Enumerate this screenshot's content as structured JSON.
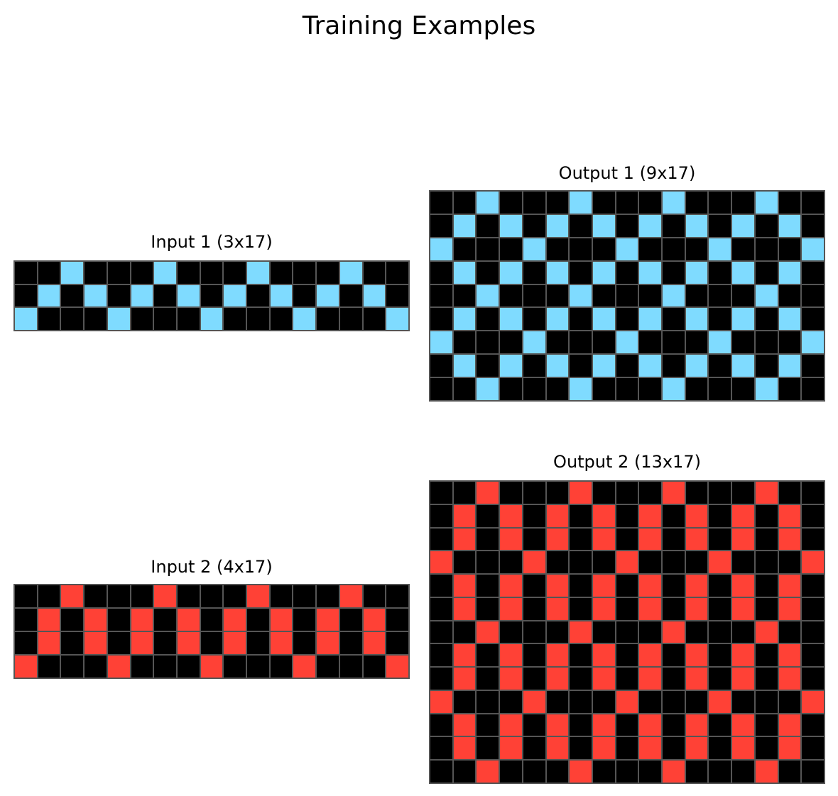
{
  "title": "Training Examples",
  "palette": {
    "0": "#000000",
    "2": "#ff4136",
    "8": "#7fdbff"
  },
  "examples": [
    {
      "input": {
        "title": "Input 1 (3x17)",
        "rows": [
          [
            0,
            0,
            8,
            0,
            0,
            0,
            8,
            0,
            0,
            0,
            8,
            0,
            0,
            0,
            8,
            0,
            0
          ],
          [
            0,
            8,
            0,
            8,
            0,
            8,
            0,
            8,
            0,
            8,
            0,
            8,
            0,
            8,
            0,
            8,
            0
          ],
          [
            8,
            0,
            0,
            0,
            8,
            0,
            0,
            0,
            8,
            0,
            0,
            0,
            8,
            0,
            0,
            0,
            8
          ]
        ]
      },
      "output": {
        "title": "Output 1 (9x17)",
        "rows": [
          [
            0,
            0,
            8,
            0,
            0,
            0,
            8,
            0,
            0,
            0,
            8,
            0,
            0,
            0,
            8,
            0,
            0
          ],
          [
            0,
            8,
            0,
            8,
            0,
            8,
            0,
            8,
            0,
            8,
            0,
            8,
            0,
            8,
            0,
            8,
            0
          ],
          [
            8,
            0,
            0,
            0,
            8,
            0,
            0,
            0,
            8,
            0,
            0,
            0,
            8,
            0,
            0,
            0,
            8
          ],
          [
            0,
            8,
            0,
            8,
            0,
            8,
            0,
            8,
            0,
            8,
            0,
            8,
            0,
            8,
            0,
            8,
            0
          ],
          [
            0,
            0,
            8,
            0,
            0,
            0,
            8,
            0,
            0,
            0,
            8,
            0,
            0,
            0,
            8,
            0,
            0
          ],
          [
            0,
            8,
            0,
            8,
            0,
            8,
            0,
            8,
            0,
            8,
            0,
            8,
            0,
            8,
            0,
            8,
            0
          ],
          [
            8,
            0,
            0,
            0,
            8,
            0,
            0,
            0,
            8,
            0,
            0,
            0,
            8,
            0,
            0,
            0,
            8
          ],
          [
            0,
            8,
            0,
            8,
            0,
            8,
            0,
            8,
            0,
            8,
            0,
            8,
            0,
            8,
            0,
            8,
            0
          ],
          [
            0,
            0,
            8,
            0,
            0,
            0,
            8,
            0,
            0,
            0,
            8,
            0,
            0,
            0,
            8,
            0,
            0
          ]
        ]
      }
    },
    {
      "input": {
        "title": "Input 2 (4x17)",
        "rows": [
          [
            0,
            0,
            2,
            0,
            0,
            0,
            2,
            0,
            0,
            0,
            2,
            0,
            0,
            0,
            2,
            0,
            0
          ],
          [
            0,
            2,
            0,
            2,
            0,
            2,
            0,
            2,
            0,
            2,
            0,
            2,
            0,
            2,
            0,
            2,
            0
          ],
          [
            0,
            2,
            0,
            2,
            0,
            2,
            0,
            2,
            0,
            2,
            0,
            2,
            0,
            2,
            0,
            2,
            0
          ],
          [
            2,
            0,
            0,
            0,
            2,
            0,
            0,
            0,
            2,
            0,
            0,
            0,
            2,
            0,
            0,
            0,
            2
          ]
        ]
      },
      "output": {
        "title": "Output 2 (13x17)",
        "rows": [
          [
            0,
            0,
            2,
            0,
            0,
            0,
            2,
            0,
            0,
            0,
            2,
            0,
            0,
            0,
            2,
            0,
            0
          ],
          [
            0,
            2,
            0,
            2,
            0,
            2,
            0,
            2,
            0,
            2,
            0,
            2,
            0,
            2,
            0,
            2,
            0
          ],
          [
            0,
            2,
            0,
            2,
            0,
            2,
            0,
            2,
            0,
            2,
            0,
            2,
            0,
            2,
            0,
            2,
            0
          ],
          [
            2,
            0,
            0,
            0,
            2,
            0,
            0,
            0,
            2,
            0,
            0,
            0,
            2,
            0,
            0,
            0,
            2
          ],
          [
            0,
            2,
            0,
            2,
            0,
            2,
            0,
            2,
            0,
            2,
            0,
            2,
            0,
            2,
            0,
            2,
            0
          ],
          [
            0,
            2,
            0,
            2,
            0,
            2,
            0,
            2,
            0,
            2,
            0,
            2,
            0,
            2,
            0,
            2,
            0
          ],
          [
            0,
            0,
            2,
            0,
            0,
            0,
            2,
            0,
            0,
            0,
            2,
            0,
            0,
            0,
            2,
            0,
            0
          ],
          [
            0,
            2,
            0,
            2,
            0,
            2,
            0,
            2,
            0,
            2,
            0,
            2,
            0,
            2,
            0,
            2,
            0
          ],
          [
            0,
            2,
            0,
            2,
            0,
            2,
            0,
            2,
            0,
            2,
            0,
            2,
            0,
            2,
            0,
            2,
            0
          ],
          [
            2,
            0,
            0,
            0,
            2,
            0,
            0,
            0,
            2,
            0,
            0,
            0,
            2,
            0,
            0,
            0,
            2
          ],
          [
            0,
            2,
            0,
            2,
            0,
            2,
            0,
            2,
            0,
            2,
            0,
            2,
            0,
            2,
            0,
            2,
            0
          ],
          [
            0,
            2,
            0,
            2,
            0,
            2,
            0,
            2,
            0,
            2,
            0,
            2,
            0,
            2,
            0,
            2,
            0
          ],
          [
            0,
            0,
            2,
            0,
            0,
            0,
            2,
            0,
            0,
            0,
            2,
            0,
            0,
            0,
            2,
            0,
            0
          ]
        ]
      }
    }
  ]
}
